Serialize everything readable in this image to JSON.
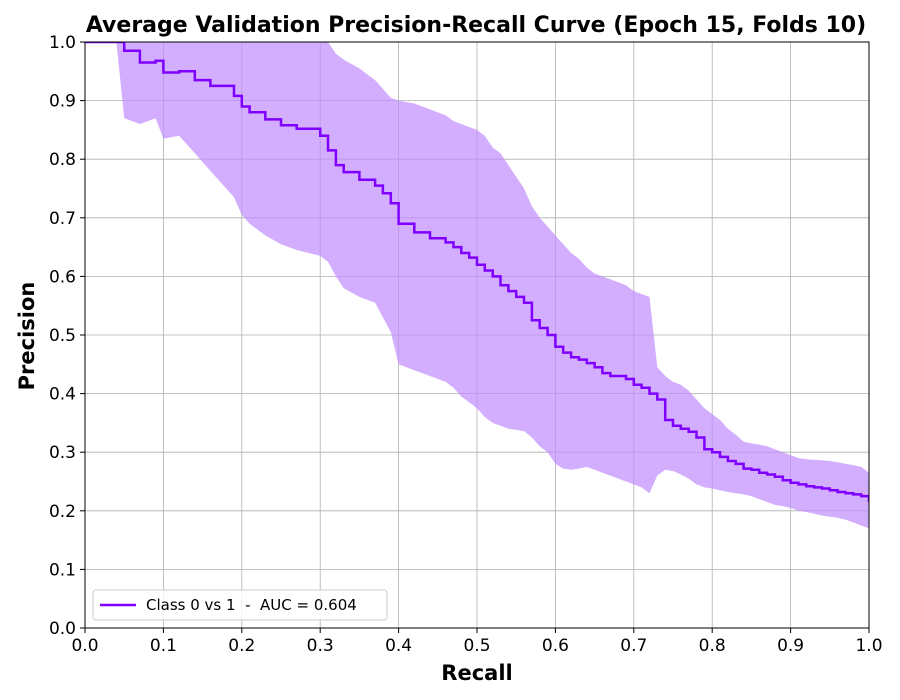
{
  "chart_data": {
    "type": "line",
    "title": "Average Validation Precision-Recall Curve (Epoch 15, Folds 10)",
    "xlabel": "Recall",
    "ylabel": "Precision",
    "xlim": [
      0.0,
      1.0
    ],
    "ylim": [
      0.0,
      1.0
    ],
    "xticks": [
      "0.0",
      "0.1",
      "0.2",
      "0.3",
      "0.4",
      "0.5",
      "0.6",
      "0.7",
      "0.8",
      "0.9",
      "1.0"
    ],
    "yticks": [
      "0.0",
      "0.1",
      "0.2",
      "0.3",
      "0.4",
      "0.5",
      "0.6",
      "0.7",
      "0.8",
      "0.9",
      "1.0"
    ],
    "grid": true,
    "legend_position": "lower-left",
    "series": [
      {
        "name": "Class 0 vs 1  -  AUC = 0.604",
        "color": "#7f00ff",
        "band_color": "#c08bff",
        "x": [
          0.0,
          0.02,
          0.04,
          0.05,
          0.07,
          0.09,
          0.1,
          0.12,
          0.14,
          0.16,
          0.19,
          0.2,
          0.21,
          0.23,
          0.25,
          0.27,
          0.3,
          0.31,
          0.32,
          0.33,
          0.35,
          0.37,
          0.38,
          0.39,
          0.4,
          0.42,
          0.44,
          0.46,
          0.47,
          0.48,
          0.49,
          0.5,
          0.51,
          0.52,
          0.53,
          0.54,
          0.55,
          0.56,
          0.57,
          0.58,
          0.59,
          0.6,
          0.61,
          0.62,
          0.63,
          0.64,
          0.65,
          0.66,
          0.67,
          0.69,
          0.7,
          0.71,
          0.72,
          0.73,
          0.74,
          0.75,
          0.76,
          0.77,
          0.78,
          0.79,
          0.8,
          0.81,
          0.82,
          0.83,
          0.84,
          0.85,
          0.86,
          0.87,
          0.88,
          0.89,
          0.9,
          0.91,
          0.92,
          0.93,
          0.94,
          0.95,
          0.96,
          0.97,
          0.98,
          0.99,
          1.0
        ],
        "y": [
          1.0,
          1.0,
          1.0,
          0.985,
          0.965,
          0.968,
          0.948,
          0.95,
          0.935,
          0.925,
          0.908,
          0.89,
          0.88,
          0.868,
          0.858,
          0.852,
          0.84,
          0.815,
          0.79,
          0.778,
          0.765,
          0.755,
          0.742,
          0.725,
          0.69,
          0.675,
          0.665,
          0.658,
          0.65,
          0.64,
          0.632,
          0.62,
          0.61,
          0.6,
          0.585,
          0.575,
          0.565,
          0.555,
          0.525,
          0.512,
          0.5,
          0.48,
          0.47,
          0.462,
          0.458,
          0.452,
          0.445,
          0.435,
          0.43,
          0.425,
          0.415,
          0.41,
          0.4,
          0.39,
          0.355,
          0.345,
          0.34,
          0.335,
          0.325,
          0.305,
          0.3,
          0.292,
          0.285,
          0.28,
          0.272,
          0.27,
          0.265,
          0.262,
          0.258,
          0.252,
          0.248,
          0.245,
          0.242,
          0.24,
          0.238,
          0.235,
          0.232,
          0.23,
          0.228,
          0.225,
          0.215
        ],
        "upper": [
          1.0,
          1.0,
          1.0,
          1.05,
          1.05,
          1.05,
          1.05,
          1.05,
          1.05,
          1.05,
          1.05,
          1.05,
          1.05,
          1.05,
          1.05,
          1.05,
          1.03,
          1.0,
          0.98,
          0.97,
          0.955,
          0.935,
          0.92,
          0.905,
          0.9,
          0.895,
          0.885,
          0.875,
          0.865,
          0.86,
          0.855,
          0.85,
          0.84,
          0.82,
          0.81,
          0.79,
          0.77,
          0.75,
          0.72,
          0.7,
          0.685,
          0.67,
          0.655,
          0.64,
          0.63,
          0.615,
          0.605,
          0.6,
          0.595,
          0.585,
          0.575,
          0.57,
          0.565,
          0.445,
          0.43,
          0.42,
          0.415,
          0.405,
          0.39,
          0.375,
          0.365,
          0.355,
          0.34,
          0.33,
          0.318,
          0.315,
          0.313,
          0.31,
          0.305,
          0.3,
          0.295,
          0.29,
          0.288,
          0.287,
          0.286,
          0.285,
          0.283,
          0.28,
          0.278,
          0.275,
          0.265
        ],
        "lower": [
          1.0,
          1.0,
          1.0,
          0.87,
          0.86,
          0.87,
          0.835,
          0.84,
          0.81,
          0.78,
          0.735,
          0.705,
          0.69,
          0.67,
          0.655,
          0.645,
          0.635,
          0.625,
          0.6,
          0.58,
          0.565,
          0.555,
          0.53,
          0.505,
          0.45,
          0.44,
          0.43,
          0.42,
          0.41,
          0.395,
          0.385,
          0.375,
          0.36,
          0.35,
          0.345,
          0.34,
          0.338,
          0.336,
          0.325,
          0.31,
          0.3,
          0.28,
          0.272,
          0.27,
          0.272,
          0.275,
          0.27,
          0.265,
          0.26,
          0.25,
          0.245,
          0.24,
          0.23,
          0.26,
          0.27,
          0.268,
          0.262,
          0.255,
          0.245,
          0.24,
          0.238,
          0.235,
          0.232,
          0.23,
          0.228,
          0.225,
          0.22,
          0.215,
          0.21,
          0.208,
          0.205,
          0.2,
          0.198,
          0.195,
          0.192,
          0.19,
          0.188,
          0.185,
          0.18,
          0.175,
          0.17
        ]
      }
    ]
  }
}
